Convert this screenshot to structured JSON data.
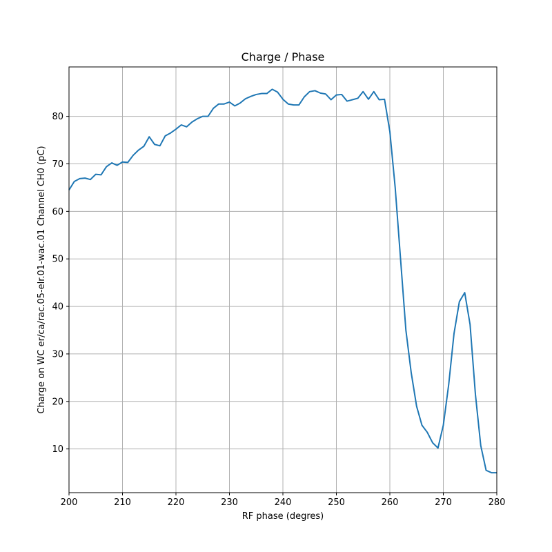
{
  "chart_data": {
    "type": "line",
    "title": "Charge / Phase",
    "xlabel": "RF phase (degres)",
    "ylabel": "Charge on WC er/ca/rac.05-elr.01-wac.01 Channel CH0 (pC)",
    "xlim": [
      200,
      280
    ],
    "ylim": [
      0.8,
      90.4
    ],
    "x_ticks": [
      200,
      210,
      220,
      230,
      240,
      250,
      260,
      270,
      280
    ],
    "y_ticks": [
      10,
      20,
      30,
      40,
      50,
      60,
      70,
      80
    ],
    "grid": true,
    "colors": {
      "series": "#1f77b4"
    },
    "series": [
      {
        "name": "",
        "x": [
          200,
          201,
          202,
          203,
          204,
          205,
          206,
          207,
          208,
          209,
          210,
          211,
          212,
          213,
          214,
          215,
          216,
          217,
          218,
          219,
          220,
          221,
          222,
          223,
          224,
          225,
          226,
          227,
          228,
          229,
          230,
          231,
          232,
          233,
          234,
          235,
          236,
          237,
          238,
          239,
          240,
          241,
          242,
          243,
          244,
          245,
          246,
          247,
          248,
          249,
          250,
          251,
          252,
          253,
          254,
          255,
          256,
          257,
          258,
          259,
          260,
          261,
          262,
          263,
          264,
          265,
          266,
          267,
          268,
          269,
          270,
          271,
          272,
          273,
          274,
          275,
          276,
          277,
          278,
          279,
          280
        ],
        "y": [
          64.5,
          66.3,
          66.9,
          67.0,
          66.7,
          67.8,
          67.7,
          69.4,
          70.2,
          69.7,
          70.4,
          70.3,
          71.8,
          72.9,
          73.7,
          75.7,
          74.1,
          73.8,
          75.9,
          76.5,
          77.3,
          78.2,
          77.8,
          78.8,
          79.5,
          80.0,
          80.0,
          81.7,
          82.6,
          82.6,
          83.0,
          82.2,
          82.8,
          83.7,
          84.2,
          84.6,
          84.8,
          84.8,
          85.7,
          85.1,
          83.6,
          82.6,
          82.4,
          82.4,
          84.1,
          85.2,
          85.4,
          84.9,
          84.7,
          83.5,
          84.5,
          84.6,
          83.2,
          83.5,
          83.8,
          85.2,
          83.6,
          85.2,
          83.5,
          83.6,
          76.8,
          65.0,
          50.0,
          35.0,
          26.0,
          19.0,
          15.0,
          13.5,
          11.3,
          10.2,
          15.0,
          23.5,
          34.3,
          41.0,
          42.9,
          36.2,
          21.5,
          10.7,
          5.5,
          5.0,
          5.0
        ]
      }
    ]
  }
}
